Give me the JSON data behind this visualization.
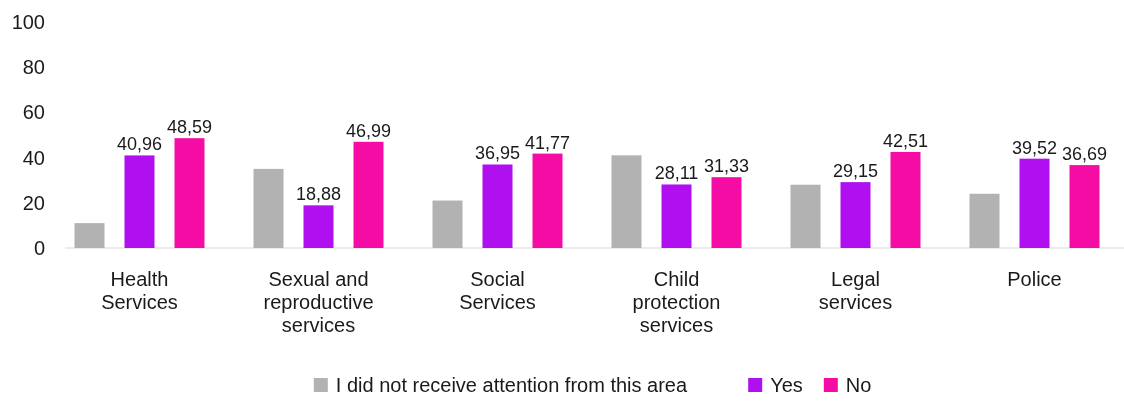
{
  "chart_data": {
    "type": "bar",
    "categories": [
      "Health Services",
      "Sexual and reproductive services",
      "Social Services",
      "Child protection services",
      "Legal services",
      "Police"
    ],
    "series": [
      {
        "name": "I did not receive attention from this area",
        "color": "#b2b2b2",
        "values": [
          11,
          35,
          21,
          41,
          28,
          24
        ],
        "value_labels": [
          null,
          null,
          null,
          null,
          null,
          null
        ]
      },
      {
        "name": "Yes",
        "color": "#b00ff0",
        "values": [
          40.96,
          18.88,
          36.95,
          28.11,
          29.15,
          39.52
        ],
        "value_labels": [
          "40,96",
          "18,88",
          "36,95",
          "28,11",
          "29,15",
          "39,52"
        ]
      },
      {
        "name": "No",
        "color": "#f50ca5",
        "values": [
          48.59,
          46.99,
          41.77,
          31.33,
          42.51,
          36.69
        ],
        "value_labels": [
          "48,59",
          "46,99",
          "41,77",
          "31,33",
          "42,51",
          "36,69"
        ]
      }
    ],
    "ylim": [
      0,
      100
    ],
    "yticks": [
      0,
      20,
      40,
      60,
      80,
      100
    ],
    "grid": false,
    "legend": "bottom"
  }
}
